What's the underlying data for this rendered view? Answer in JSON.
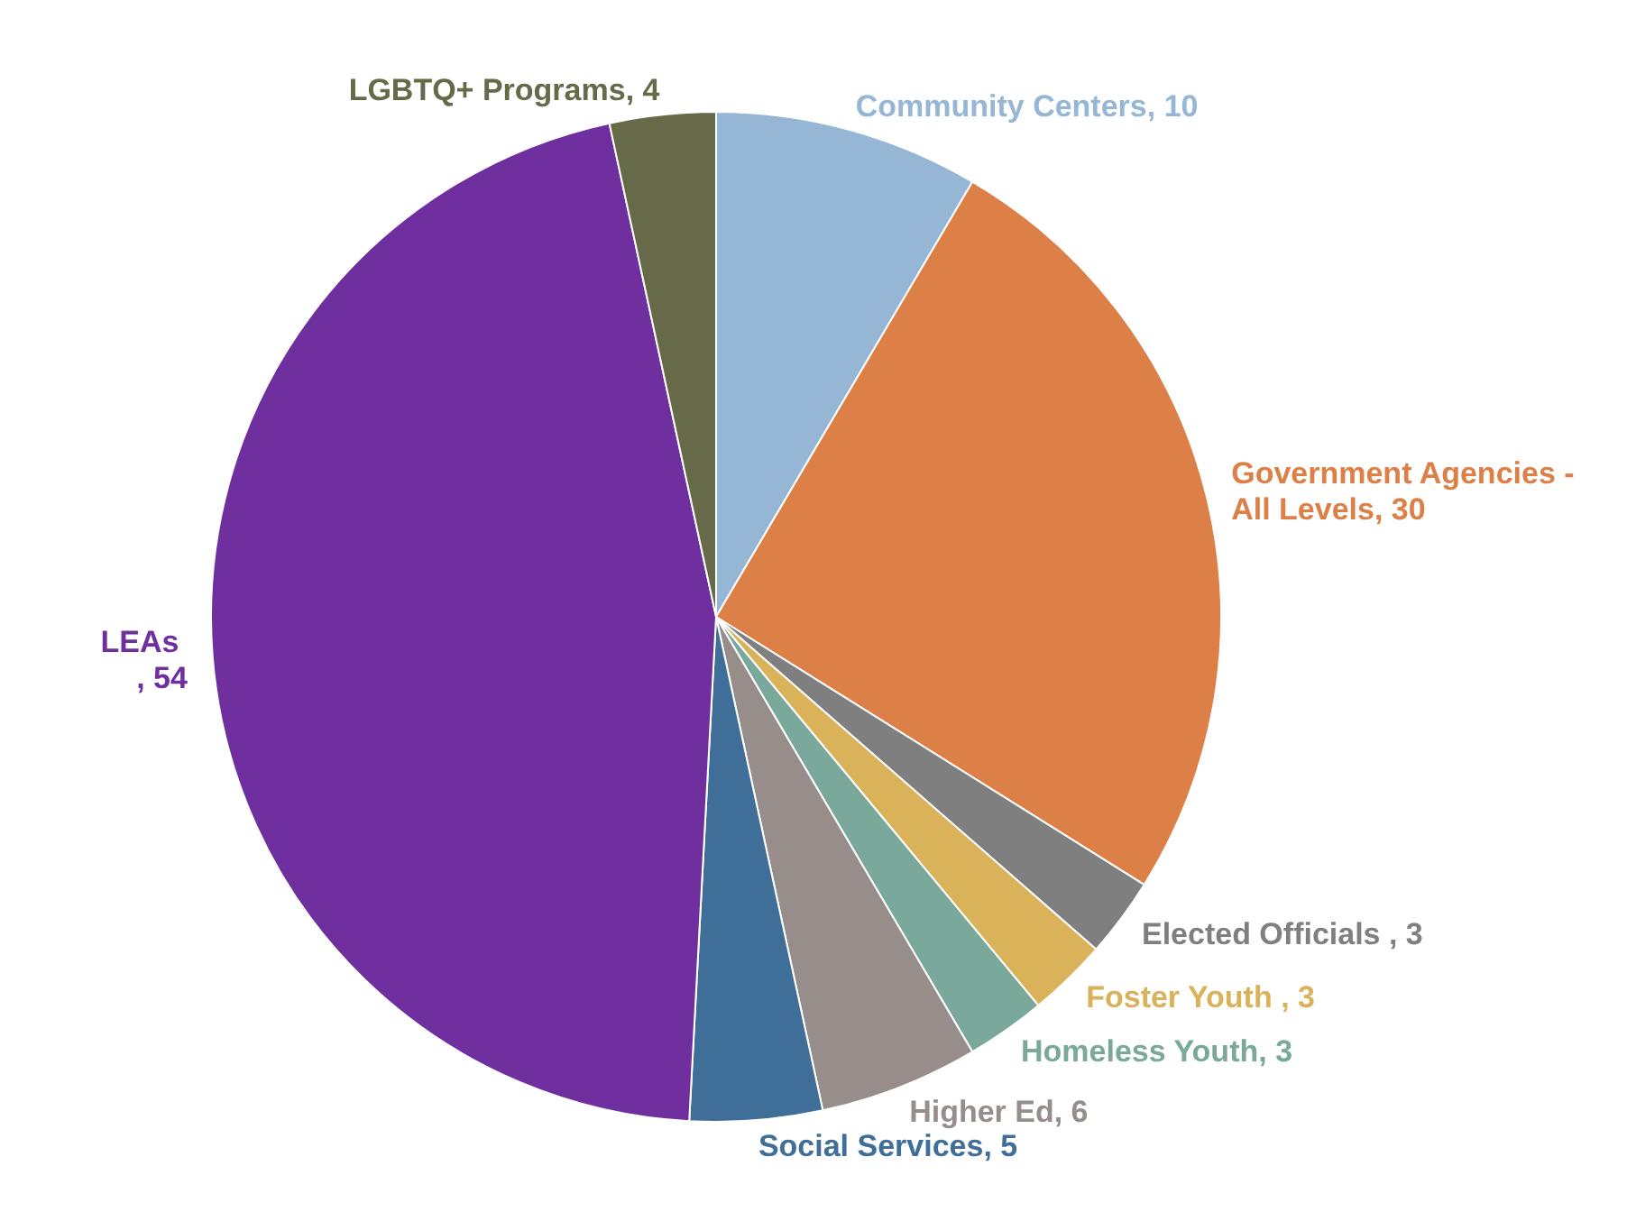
{
  "chart_data": {
    "type": "pie",
    "categories": [
      "Community Centers",
      "Government Agencies - All Levels",
      "Elected Officials ",
      "Foster Youth ",
      "Homeless Youth",
      "Higher Ed",
      "Social Services",
      "LEAs ",
      "LGBTQ+  Programs"
    ],
    "values": [
      10,
      30,
      3,
      3,
      3,
      6,
      5,
      54,
      4
    ],
    "value_labels": [
      ", 10",
      ", 30",
      ", 3",
      ", 3",
      ", 3",
      ", 6",
      ", 5",
      ", 54",
      ", 4"
    ],
    "colors": [
      "#95b6d4",
      "#dd8047",
      "#7f7f7f",
      "#d9b25a",
      "#7aa89b",
      "#978e8b",
      "#3f6f99",
      "#6f2f9f",
      "#666a48"
    ],
    "legend": false
  }
}
